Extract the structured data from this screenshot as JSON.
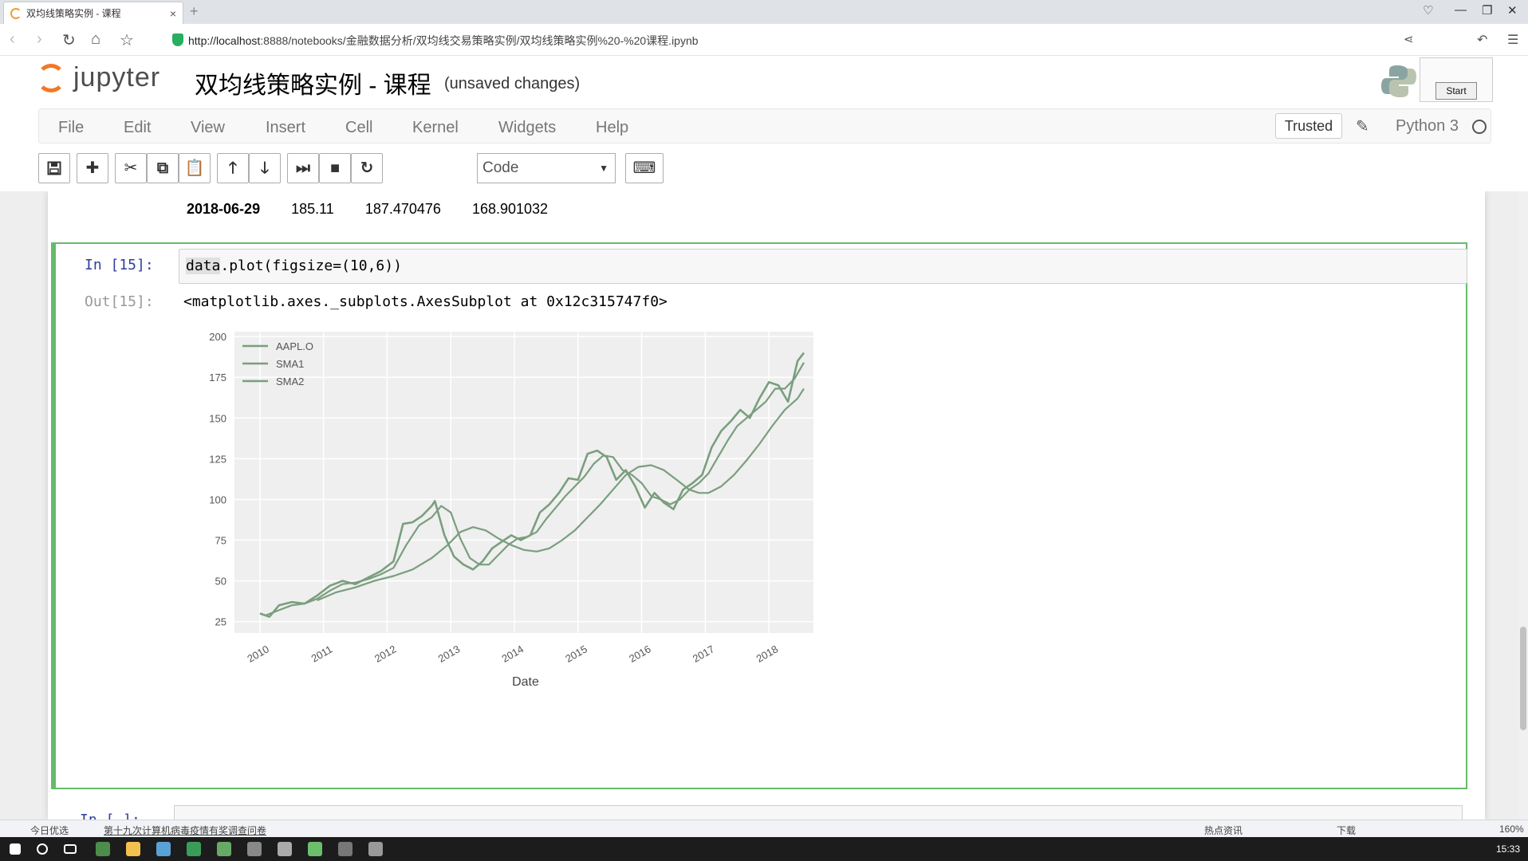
{
  "browser": {
    "tab_title": "双均线策略实例 - 课程",
    "tab_close": "×",
    "new_tab": "+",
    "url_host": "http://localhost",
    "url_rest": ":8888/notebooks/金融数据分析/双均线交易策略实例/双均线策略实例%20-%20课程.ipynb"
  },
  "jupyter": {
    "logo_text": "jupyter",
    "notebook_title": "双均线策略实例 - 课程",
    "save_status": "(unsaved changes)",
    "start_label": "Start",
    "menu": [
      "File",
      "Edit",
      "View",
      "Insert",
      "Cell",
      "Kernel",
      "Widgets",
      "Help"
    ],
    "trusted_label": "Trusted",
    "kernel_name": "Python 3",
    "cell_type": "Code"
  },
  "previous_output": {
    "index": "2018-06-29",
    "values": [
      "185.11",
      "187.470476",
      "168.901032"
    ]
  },
  "cell": {
    "in_prompt": "In  [15]:",
    "code_obj": "data",
    "code_rest": ".plot(figsize=(10,6))",
    "out_prompt": "Out[15]:",
    "out_text": "<matplotlib.axes._subplots.AxesSubplot at 0x12c315747f0>"
  },
  "next_cell": {
    "in_prompt": "In  [ ]:"
  },
  "chart_data": {
    "type": "line",
    "xlabel": "Date",
    "x_ticks": [
      "2010",
      "2011",
      "2012",
      "2013",
      "2014",
      "2015",
      "2016",
      "2017",
      "2018"
    ],
    "y_ticks": [
      25,
      50,
      75,
      100,
      125,
      150,
      175,
      200
    ],
    "ylim": [
      18,
      203
    ],
    "xlim": [
      2009.6,
      2018.75
    ],
    "grid": true,
    "legend_position": "top-left",
    "line_color": "#7a9e7e",
    "series": [
      {
        "name": "AAPL.O",
        "x": [
          2010.0,
          2010.15,
          2010.3,
          2010.5,
          2010.7,
          2010.9,
          2011.1,
          2011.3,
          2011.5,
          2011.7,
          2011.9,
          2012.1,
          2012.25,
          2012.4,
          2012.55,
          2012.7,
          2012.75,
          2012.9,
          2013.05,
          2013.2,
          2013.35,
          2013.5,
          2013.65,
          2013.8,
          2013.95,
          2014.1,
          2014.25,
          2014.4,
          2014.55,
          2014.7,
          2014.85,
          2015.0,
          2015.15,
          2015.3,
          2015.45,
          2015.6,
          2015.75,
          2015.9,
          2016.05,
          2016.2,
          2016.35,
          2016.5,
          2016.65,
          2016.8,
          2016.95,
          2017.1,
          2017.25,
          2017.4,
          2017.55,
          2017.7,
          2017.85,
          2018.0,
          2018.15,
          2018.3,
          2018.45,
          2018.55
        ],
        "values": [
          30,
          28,
          35,
          37,
          36,
          41,
          47,
          50,
          48,
          52,
          56,
          62,
          85,
          86,
          90,
          96,
          99,
          78,
          65,
          60,
          57,
          62,
          70,
          74,
          78,
          75,
          78,
          92,
          97,
          104,
          113,
          112,
          128,
          130,
          126,
          112,
          118,
          108,
          95,
          104,
          98,
          94,
          106,
          110,
          115,
          132,
          142,
          148,
          155,
          150,
          162,
          172,
          170,
          160,
          185,
          190
        ]
      },
      {
        "name": "SMA1",
        "x": [
          2010.1,
          2010.3,
          2010.5,
          2010.7,
          2010.9,
          2011.1,
          2011.3,
          2011.5,
          2011.7,
          2011.9,
          2012.1,
          2012.3,
          2012.5,
          2012.7,
          2012.85,
          2013.0,
          2013.15,
          2013.3,
          2013.45,
          2013.6,
          2013.75,
          2013.9,
          2014.05,
          2014.2,
          2014.35,
          2014.5,
          2014.65,
          2014.8,
          2014.95,
          2015.1,
          2015.25,
          2015.4,
          2015.55,
          2015.7,
          2015.85,
          2016.0,
          2016.15,
          2016.3,
          2016.45,
          2016.6,
          2016.75,
          2016.9,
          2017.05,
          2017.2,
          2017.35,
          2017.5,
          2017.65,
          2017.8,
          2017.95,
          2018.1,
          2018.25,
          2018.4,
          2018.55
        ],
        "values": [
          29,
          32,
          35,
          36,
          39,
          44,
          48,
          49,
          51,
          54,
          58,
          72,
          84,
          89,
          96,
          92,
          76,
          64,
          60,
          60,
          66,
          72,
          76,
          77,
          80,
          88,
          95,
          102,
          108,
          114,
          122,
          127,
          126,
          118,
          115,
          110,
          102,
          100,
          97,
          100,
          106,
          110,
          116,
          126,
          136,
          145,
          150,
          155,
          160,
          168,
          168,
          174,
          184
        ]
      },
      {
        "name": "SMA2",
        "x": [
          2010.9,
          2011.2,
          2011.5,
          2011.8,
          2012.1,
          2012.4,
          2012.7,
          2012.95,
          2013.15,
          2013.35,
          2013.55,
          2013.75,
          2013.95,
          2014.15,
          2014.35,
          2014.55,
          2014.75,
          2014.95,
          2015.15,
          2015.35,
          2015.55,
          2015.75,
          2015.95,
          2016.15,
          2016.35,
          2016.55,
          2016.75,
          2016.9,
          2017.05,
          2017.25,
          2017.45,
          2017.65,
          2017.85,
          2018.05,
          2018.25,
          2018.45,
          2018.55
        ],
        "values": [
          38,
          43,
          46,
          50,
          53,
          57,
          64,
          72,
          80,
          83,
          81,
          76,
          72,
          69,
          68,
          70,
          75,
          81,
          89,
          97,
          106,
          115,
          120,
          121,
          118,
          112,
          106,
          104,
          104,
          108,
          115,
          124,
          134,
          145,
          155,
          162,
          168
        ]
      }
    ]
  },
  "statusbar": {
    "left1": "今日优选",
    "left2": "第十九次计算机病毒疫情有奖调查问卷",
    "right1": "热点资讯",
    "right2": "下载",
    "zoom": "160%"
  },
  "taskbar": {
    "time": "15:33"
  }
}
